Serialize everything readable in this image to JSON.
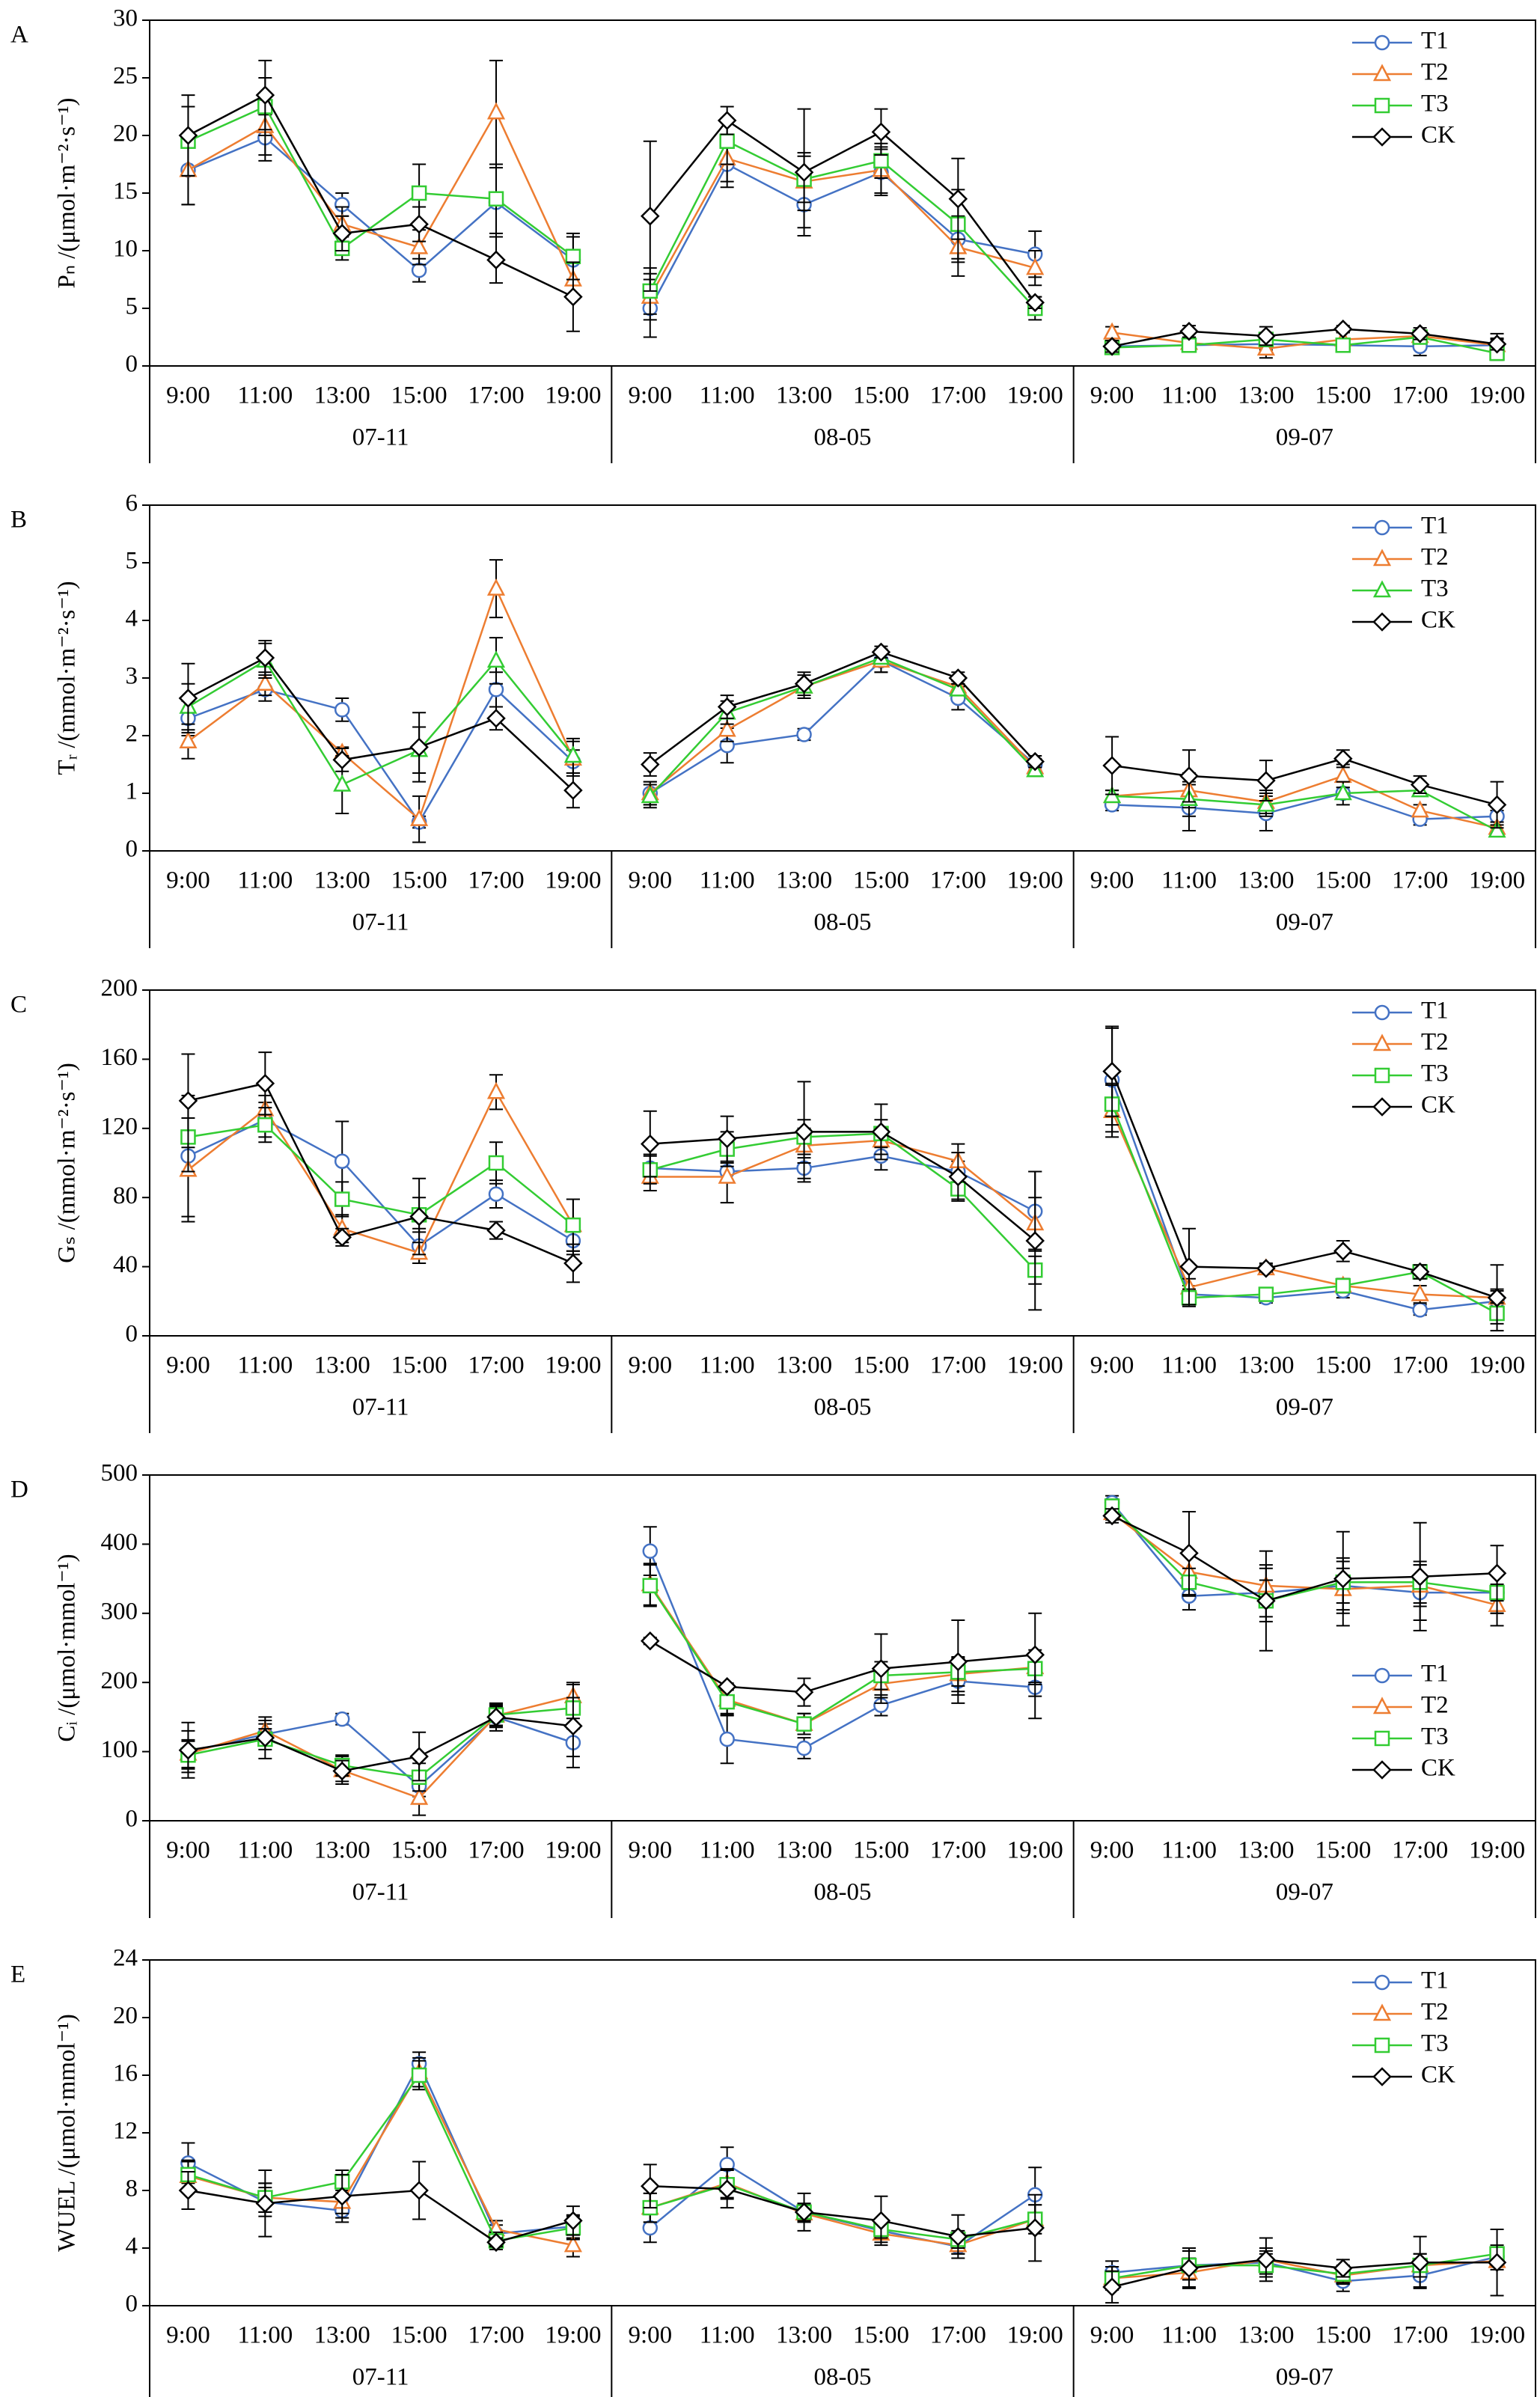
{
  "chart_data": [
    {
      "type": "line",
      "label": "A",
      "ylabel": "Pₙ /(μmol·m⁻²·s⁻¹)",
      "categories": [
        "9:00",
        "11:00",
        "13:00",
        "15:00",
        "17:00",
        "19:00",
        "9:00",
        "11:00",
        "13:00",
        "15:00",
        "17:00",
        "19:00",
        "9:00",
        "11:00",
        "13:00",
        "15:00",
        "17:00",
        "19:00"
      ],
      "groups": [
        "07-11",
        "08-05",
        "09-07"
      ],
      "ylim": [
        0,
        30
      ],
      "yticks": [
        0,
        5,
        10,
        15,
        20,
        25,
        30
      ],
      "legend_position": "upper right",
      "series": [
        {
          "name": "T1",
          "color": "#4472c4",
          "marker": "circle",
          "values": [
            17,
            19.8,
            14,
            8.3,
            14.2,
            9.2,
            5,
            17.5,
            14,
            16.8,
            11,
            9.7,
            1.7,
            1.8,
            1.9,
            1.8,
            1.7,
            1.8
          ],
          "errors": [
            3,
            2,
            1,
            1,
            3,
            2,
            2.5,
            2,
            2,
            2,
            2,
            2,
            0.5,
            0.5,
            0.5,
            0.5,
            0.8,
            1
          ]
        },
        {
          "name": "T2",
          "color": "#ed7d31",
          "marker": "triangle",
          "values": [
            17,
            20.8,
            12.3,
            10.3,
            22,
            7.5,
            6,
            18,
            16,
            17,
            10.3,
            8.5,
            2.9,
            2,
            1.5,
            2.3,
            2.6,
            1.8
          ],
          "errors": [
            3,
            2.5,
            1.5,
            1.5,
            4.5,
            1.5,
            2,
            2,
            2.5,
            2,
            2.5,
            1.5,
            0.5,
            0.5,
            0.8,
            0.6,
            0.5,
            0.5
          ]
        },
        {
          "name": "T3",
          "color": "#33cc33",
          "marker": "square",
          "values": [
            19.5,
            22.5,
            10.2,
            15,
            14.5,
            9.5,
            6.5,
            19.5,
            16.2,
            17.8,
            12.3,
            5,
            1.6,
            1.8,
            2.3,
            1.8,
            2.5,
            1.1
          ],
          "errors": [
            3,
            2.5,
            1,
            2.5,
            3,
            2,
            2,
            2,
            2,
            1.5,
            3,
            1,
            0.4,
            0.4,
            0.6,
            0.4,
            0.5,
            0.6
          ]
        },
        {
          "name": "CK",
          "color": "#000000",
          "marker": "diamond",
          "values": [
            20,
            23.5,
            11.5,
            12.3,
            9.2,
            6,
            13,
            21.3,
            16.8,
            20.3,
            14.5,
            5.5,
            1.7,
            3,
            2.6,
            3.2,
            2.8,
            1.9
          ],
          "errors": [
            3.5,
            3,
            1.5,
            1.5,
            2,
            3,
            6.5,
            1.2,
            5.5,
            2,
            3.5,
            0.5,
            0.5,
            0.5,
            0.8,
            0.3,
            0.5,
            0.5
          ]
        }
      ]
    },
    {
      "type": "line",
      "label": "B",
      "ylabel": "Tᵣ /(mmol·m⁻²·s⁻¹)",
      "categories": [
        "9:00",
        "11:00",
        "13:00",
        "15:00",
        "17:00",
        "19:00",
        "9:00",
        "11:00",
        "13:00",
        "15:00",
        "17:00",
        "19:00",
        "9:00",
        "11:00",
        "13:00",
        "15:00",
        "17:00",
        "19:00"
      ],
      "groups": [
        "07-11",
        "08-05",
        "09-07"
      ],
      "ylim": [
        0,
        6
      ],
      "yticks": [
        0,
        1,
        2,
        3,
        4,
        5,
        6
      ],
      "legend_position": "upper right",
      "series": [
        {
          "name": "T1",
          "color": "#4472c4",
          "marker": "circle",
          "values": [
            2.3,
            2.8,
            2.45,
            0.5,
            2.8,
            1.55,
            1,
            1.83,
            2.02,
            3.3,
            2.65,
            1.5,
            0.8,
            0.75,
            0.65,
            1,
            0.55,
            0.6
          ],
          "errors": [
            0.3,
            0.2,
            0.2,
            0.1,
            0.3,
            0.2,
            0.2,
            0.3,
            0.1,
            0.2,
            0.2,
            0.1,
            0.1,
            0.4,
            0.3,
            0.1,
            0.1,
            0.1
          ]
        },
        {
          "name": "T2",
          "color": "#ed7d31",
          "marker": "triangle",
          "values": [
            1.9,
            2.9,
            1.7,
            0.55,
            4.55,
            1.6,
            1,
            2.1,
            2.85,
            3.3,
            2.85,
            1.45,
            0.95,
            1.05,
            0.85,
            1.3,
            0.7,
            0.4
          ],
          "errors": [
            0.3,
            0.2,
            0.1,
            0.4,
            0.5,
            0.3,
            0.2,
            0.2,
            0.1,
            0.2,
            0.1,
            0.1,
            0.1,
            0.3,
            0.2,
            0.2,
            0.1,
            0.1
          ]
        },
        {
          "name": "T3",
          "color": "#33cc33",
          "marker": "triangle",
          "values": [
            2.5,
            3.3,
            1.15,
            1.75,
            3.3,
            1.65,
            0.95,
            2.4,
            2.85,
            3.35,
            2.8,
            1.4,
            0.95,
            0.9,
            0.8,
            1,
            1.05,
            0.35
          ],
          "errors": [
            0.4,
            0.3,
            0.5,
            0.4,
            0.4,
            0.3,
            0.2,
            0.2,
            0.2,
            0.1,
            0.1,
            0.1,
            0.1,
            0.3,
            0.2,
            0.2,
            0.1,
            0.1
          ]
        },
        {
          "name": "CK",
          "color": "#000000",
          "marker": "diamond",
          "values": [
            2.65,
            3.35,
            1.58,
            1.8,
            2.3,
            1.05,
            1.5,
            2.5,
            2.9,
            3.45,
            3,
            1.55,
            1.48,
            1.3,
            1.22,
            1.6,
            1.15,
            0.8
          ],
          "errors": [
            0.6,
            0.3,
            0.2,
            0.6,
            0.2,
            0.3,
            0.2,
            0.2,
            0.2,
            0.1,
            0.1,
            0.1,
            0.5,
            0.45,
            0.35,
            0.15,
            0.15,
            0.4
          ]
        }
      ]
    },
    {
      "type": "line",
      "label": "C",
      "ylabel": "Gₛ /(mmol·m⁻²·s⁻¹)",
      "categories": [
        "9:00",
        "11:00",
        "13:00",
        "15:00",
        "17:00",
        "19:00",
        "9:00",
        "11:00",
        "13:00",
        "15:00",
        "17:00",
        "19:00",
        "9:00",
        "11:00",
        "13:00",
        "15:00",
        "17:00",
        "19:00"
      ],
      "groups": [
        "07-11",
        "08-05",
        "09-07"
      ],
      "ylim": [
        0,
        200
      ],
      "yticks": [
        0,
        40,
        80,
        120,
        160,
        200
      ],
      "legend_position": "upper right",
      "series": [
        {
          "name": "T1",
          "color": "#4472c4",
          "marker": "circle",
          "values": [
            104,
            125,
            101,
            52,
            82,
            55,
            97,
            95,
            97,
            104,
            95,
            72,
            148,
            24,
            22,
            26,
            15,
            20
          ],
          "errors": [
            35,
            10,
            23,
            10,
            8,
            8,
            8,
            5,
            6,
            8,
            6,
            23,
            30,
            5,
            3,
            4,
            3,
            6
          ]
        },
        {
          "name": "T2",
          "color": "#ed7d31",
          "marker": "triangle",
          "values": [
            96,
            131,
            62,
            48,
            141,
            64,
            92,
            92,
            110,
            113,
            101,
            65,
            130,
            28,
            39,
            29,
            24,
            22
          ],
          "errors": [
            30,
            8,
            8,
            6,
            10,
            15,
            8,
            15,
            10,
            8,
            10,
            15,
            15,
            5,
            3,
            4,
            5,
            5
          ]
        },
        {
          "name": "T3",
          "color": "#33cc33",
          "marker": "square",
          "values": [
            115,
            122,
            79,
            70,
            100,
            64,
            96,
            108,
            115,
            117,
            85,
            38,
            134,
            22,
            24,
            29,
            37,
            13
          ],
          "errors": [
            20,
            10,
            10,
            10,
            12,
            15,
            8,
            10,
            10,
            8,
            6,
            8,
            12,
            5,
            3,
            4,
            4,
            6
          ]
        },
        {
          "name": "CK",
          "color": "#000000",
          "marker": "diamond",
          "values": [
            136,
            146,
            57,
            69,
            61,
            42,
            111,
            114,
            118,
            118,
            92,
            55,
            153,
            40,
            39,
            49,
            37,
            22
          ],
          "errors": [
            27,
            18,
            5,
            22,
            5,
            11,
            19,
            13,
            29,
            16,
            14,
            40,
            26,
            22,
            2,
            6,
            4,
            19
          ]
        }
      ]
    },
    {
      "type": "line",
      "label": "D",
      "ylabel": "Cᵢ /(μmol·mmol⁻¹)",
      "categories": [
        "9:00",
        "11:00",
        "13:00",
        "15:00",
        "17:00",
        "19:00",
        "9:00",
        "11:00",
        "13:00",
        "15:00",
        "17:00",
        "19:00",
        "9:00",
        "11:00",
        "13:00",
        "15:00",
        "17:00",
        "19:00"
      ],
      "groups": [
        "07-11",
        "08-05",
        "09-07"
      ],
      "ylim": [
        0,
        500
      ],
      "yticks": [
        0,
        100,
        200,
        300,
        400,
        500
      ],
      "legend_position": "center right",
      "series": [
        {
          "name": "T1",
          "color": "#4472c4",
          "marker": "circle",
          "values": [
            100,
            125,
            147,
            50,
            150,
            113,
            390,
            118,
            105,
            167,
            202,
            193,
            460,
            325,
            330,
            340,
            330,
            330
          ],
          "errors": [
            30,
            15,
            8,
            15,
            15,
            20,
            35,
            35,
            15,
            15,
            20,
            45,
            10,
            20,
            35,
            40,
            40,
            30
          ]
        },
        {
          "name": "T2",
          "color": "#ed7d31",
          "marker": "triangle",
          "values": [
            97,
            130,
            73,
            33,
            152,
            180,
            342,
            175,
            140,
            198,
            212,
            222,
            445,
            360,
            340,
            335,
            340,
            312
          ],
          "errors": [
            20,
            15,
            20,
            25,
            15,
            20,
            30,
            20,
            15,
            20,
            25,
            25,
            10,
            25,
            30,
            30,
            30,
            30
          ]
        },
        {
          "name": "T3",
          "color": "#33cc33",
          "marker": "square",
          "values": [
            95,
            118,
            80,
            63,
            153,
            163,
            340,
            172,
            140,
            210,
            215,
            220,
            455,
            345,
            318,
            345,
            345,
            330
          ],
          "errors": [
            20,
            15,
            15,
            20,
            15,
            15,
            30,
            20,
            15,
            20,
            20,
            20,
            10,
            20,
            30,
            30,
            30,
            30
          ]
        },
        {
          "name": "CK",
          "color": "#000000",
          "marker": "diamond",
          "values": [
            102,
            120,
            72,
            93,
            150,
            137,
            260,
            194,
            186,
            220,
            230,
            240,
            441,
            387,
            318,
            350,
            353,
            358
          ],
          "errors": [
            40,
            30,
            15,
            35,
            20,
            60,
            5,
            5,
            20,
            50,
            60,
            60,
            10,
            60,
            72,
            68,
            78,
            40
          ]
        }
      ]
    },
    {
      "type": "line",
      "label": "E",
      "ylabel": "WUEL /(μmol·mmol⁻¹)",
      "categories": [
        "9:00",
        "11:00",
        "13:00",
        "15:00",
        "17:00",
        "19:00",
        "9:00",
        "11:00",
        "13:00",
        "15:00",
        "17:00",
        "19:00",
        "9:00",
        "11:00",
        "13:00",
        "15:00",
        "17:00",
        "19:00"
      ],
      "groups": [
        "07-11",
        "08-05",
        "09-07"
      ],
      "ylim": [
        0,
        24
      ],
      "yticks": [
        0,
        4,
        8,
        12,
        16,
        20,
        24
      ],
      "legend_position": "upper right",
      "series": [
        {
          "name": "T1",
          "color": "#4472c4",
          "marker": "circle",
          "values": [
            9.9,
            7.2,
            6.6,
            16.8,
            5,
            5.5,
            5.4,
            9.8,
            6.5,
            5.2,
            4.1,
            7.7,
            2.3,
            2.8,
            3,
            1.7,
            2.1,
            3.4
          ],
          "errors": [
            1.4,
            1,
            0.8,
            0.8,
            0.6,
            0.8,
            1,
            1.2,
            0.6,
            0.5,
            0.5,
            1.9,
            0.8,
            1,
            0.8,
            0.7,
            0.8,
            0.6
          ]
        },
        {
          "name": "T2",
          "color": "#ed7d31",
          "marker": "triangle",
          "values": [
            9,
            7.5,
            7.2,
            16.2,
            5.3,
            4.2,
            6.8,
            8.5,
            6.4,
            5,
            4.2,
            6,
            1.9,
            2.3,
            3.2,
            2.1,
            2.8,
            3.1
          ],
          "errors": [
            1,
            1,
            0.8,
            1,
            0.6,
            0.8,
            1,
            1,
            0.6,
            0.6,
            0.6,
            1,
            0.8,
            1,
            0.8,
            0.6,
            0.8,
            0.6
          ]
        },
        {
          "name": "T3",
          "color": "#33cc33",
          "marker": "square",
          "values": [
            9.1,
            7.5,
            8.6,
            16,
            4.5,
            5.4,
            6.8,
            8.4,
            6.5,
            5.3,
            4.6,
            6,
            1.9,
            2.8,
            2.8,
            2.2,
            2.8,
            3.6
          ],
          "errors": [
            1,
            1,
            0.8,
            1,
            0.6,
            0.8,
            1,
            1,
            0.6,
            0.6,
            0.6,
            1,
            0.8,
            1,
            0.8,
            0.6,
            0.8,
            0.6
          ]
        },
        {
          "name": "CK",
          "color": "#000000",
          "marker": "diamond",
          "values": [
            8,
            7.1,
            7.6,
            8,
            4.4,
            5.9,
            8.3,
            8.1,
            6.5,
            5.9,
            4.8,
            5.4,
            1.3,
            2.6,
            3.2,
            2.6,
            3,
            3
          ],
          "errors": [
            1.3,
            2.3,
            1.5,
            2,
            0.3,
            1,
            1.5,
            1.3,
            1.3,
            1.7,
            1.5,
            2.3,
            1.1,
            1.4,
            1.5,
            0.6,
            1.8,
            2.3
          ]
        }
      ]
    }
  ]
}
